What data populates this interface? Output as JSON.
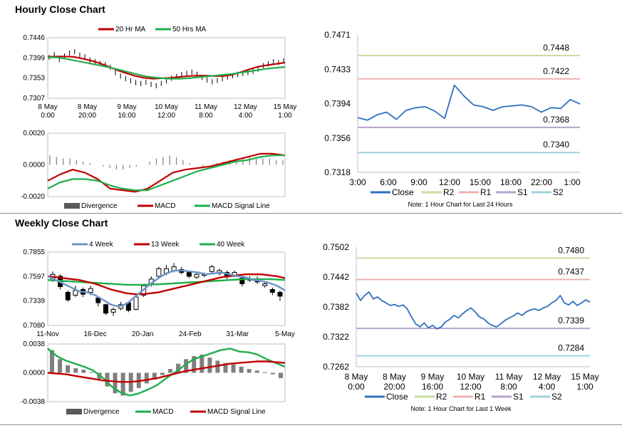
{
  "titles": {
    "hourly": "Hourly Close Chart",
    "weekly": "Weekly Close Chart"
  },
  "colors": {
    "ma_red": "#c00000",
    "ma_green": "#1fae4b",
    "close_blue": "#2f6fbf",
    "four_week": "#6a94c9",
    "r2": "#c8dca0",
    "r1": "#eeb0b0",
    "s1": "#b4a2ce",
    "s2": "#9fd3dc",
    "divergence": "#7f7f7f"
  },
  "chart_data": [
    {
      "type": "line",
      "id": "hourly_ma",
      "title": "",
      "legend": [
        "20 Hr MA",
        "50 Hrs MA"
      ],
      "legend_position": "top",
      "y_ticks": [
        "0.7446",
        "0.7399",
        "0.7353",
        "0.7307"
      ],
      "ylim": [
        0.7307,
        0.7446
      ],
      "x_ticks": [
        "8 May\n0:00",
        "8 May\n20:00",
        "9 May\n16:00",
        "10 May\n12:00",
        "11 May\n8:00",
        "12 May\n4:00",
        "15 May\n1:00"
      ],
      "grid": false,
      "close_style": "hourly OHLC bars",
      "close": [
        0.7401,
        0.7407,
        0.7396,
        0.7404,
        0.7411,
        0.7414,
        0.7406,
        0.7402,
        0.7395,
        0.7391,
        0.7387,
        0.7384,
        0.7378,
        0.7366,
        0.7358,
        0.7352,
        0.7347,
        0.7343,
        0.7341,
        0.7344,
        0.7339,
        0.7336,
        0.7341,
        0.7347,
        0.7353,
        0.7357,
        0.7361,
        0.7364,
        0.7367,
        0.7362,
        0.7355,
        0.7349,
        0.7345,
        0.7348,
        0.7352,
        0.7356,
        0.7359,
        0.7362,
        0.7364,
        0.7366,
        0.7369,
        0.7374,
        0.7382,
        0.7386,
        0.7391,
        0.7389,
        0.7393
      ],
      "series": [
        {
          "name": "20 Hr MA",
          "values": [
            0.7402,
            0.7403,
            0.7403,
            0.7402,
            0.7398,
            0.7393,
            0.7387,
            0.7379,
            0.7371,
            0.7364,
            0.7358,
            0.7354,
            0.7352,
            0.7353,
            0.7354,
            0.7356,
            0.7358,
            0.7359,
            0.7359,
            0.7358,
            0.7358,
            0.7361,
            0.7367,
            0.7374,
            0.738,
            0.7383,
            0.7386,
            0.7389
          ]
        },
        {
          "name": "50 Hrs MA",
          "values": [
            0.7401,
            0.7401,
            0.7398,
            0.7394,
            0.739,
            0.7386,
            0.7382,
            0.7378,
            0.7373,
            0.7368,
            0.7363,
            0.7358,
            0.7355,
            0.7353,
            0.7352,
            0.7352,
            0.7353,
            0.7355,
            0.7357,
            0.7359,
            0.7361,
            0.7363,
            0.7366,
            0.7369,
            0.7372,
            0.7375,
            0.7377,
            0.7379
          ]
        }
      ]
    },
    {
      "type": "line",
      "id": "hourly_macd",
      "legend": [
        "Divergence",
        "MACD",
        "MACD Signal Line"
      ],
      "legend_position": "bottom",
      "y_ticks": [
        "0.0020",
        "0.0000",
        "-0.0020"
      ],
      "ylim": [
        -0.002,
        0.002
      ],
      "divergence": [
        0.0006,
        0.0005,
        0.0004,
        0.0004,
        0.0003,
        0.0002,
        0.0001,
        0.0,
        -0.0001,
        -0.0002,
        -0.0003,
        -0.0003,
        -0.0002,
        -0.0001,
        0.0,
        0.0002,
        0.0004,
        0.0005,
        0.0006,
        0.0005,
        0.0003,
        0.0001,
        0.0,
        -0.0001,
        0.0,
        0.0001,
        0.0002,
        0.0003,
        0.0004,
        0.0005,
        0.0005,
        0.0005,
        0.0004,
        0.0004,
        0.0003,
        0.0003
      ],
      "series": [
        {
          "name": "MACD",
          "values": [
            -0.001,
            -0.0006,
            -0.0003,
            -0.0005,
            -0.0009,
            -0.0015,
            -0.0016,
            -0.0017,
            -0.0015,
            -0.001,
            -0.0005,
            -0.0003,
            -0.0002,
            -0.0001,
            0.0001,
            0.0003,
            0.0005,
            0.0007,
            0.0007,
            0.0006
          ]
        },
        {
          "name": "MACD Signal Line",
          "values": [
            -0.0015,
            -0.0011,
            -0.0009,
            -0.0009,
            -0.001,
            -0.0013,
            -0.0015,
            -0.0016,
            -0.0016,
            -0.0013,
            -0.001,
            -0.0007,
            -0.0004,
            -0.0002,
            0.0,
            0.0002,
            0.0003,
            0.0005,
            0.0006,
            0.0006
          ]
        }
      ]
    },
    {
      "type": "line",
      "id": "hourly_24h",
      "legend": [
        "Close",
        "R2",
        "R1",
        "S1",
        "S2"
      ],
      "legend_position": "bottom",
      "note": "Note: 1 Hour Chart for Last 24 Hours",
      "y_ticks": [
        "0.7471",
        "0.7433",
        "0.7394",
        "0.7356",
        "0.7318"
      ],
      "ylim": [
        0.7318,
        0.7471
      ],
      "x_ticks": [
        "3:00",
        "6:00",
        "9:00",
        "12:00",
        "15:00",
        "18:00",
        "22:00",
        "1:00"
      ],
      "levels": [
        {
          "name": "R2",
          "value": 0.7448,
          "label": "0.7448"
        },
        {
          "name": "R1",
          "value": 0.7422,
          "label": "0.7422"
        },
        {
          "name": "S1",
          "value": 0.7368,
          "label": "0.7368"
        },
        {
          "name": "S2",
          "value": 0.734,
          "label": "0.7340"
        }
      ],
      "close": [
        0.7379,
        0.7376,
        0.7382,
        0.7385,
        0.7377,
        0.7387,
        0.739,
        0.7391,
        0.7386,
        0.7378,
        0.7415,
        0.7403,
        0.7393,
        0.7391,
        0.7387,
        0.7391,
        0.7392,
        0.7393,
        0.7391,
        0.7385,
        0.739,
        0.7389,
        0.7399,
        0.7394
      ]
    },
    {
      "type": "line",
      "id": "weekly_ma",
      "legend": [
        "4 Week",
        "13 Week",
        "40 Week"
      ],
      "legend_position": "top",
      "y_ticks": [
        "0.7855",
        "0.7597",
        "0.7339",
        "0.7080"
      ],
      "ylim": [
        0.708,
        0.7855
      ],
      "x_ticks": [
        "11-Nov",
        "16-Dec",
        "20-Jan",
        "24-Feb",
        "31-Mar",
        "5-May"
      ],
      "close_style": "weekly candlesticks",
      "candles": [
        {
          "o": 0.756,
          "c": 0.762,
          "h": 0.765,
          "l": 0.754
        },
        {
          "o": 0.76,
          "c": 0.749,
          "h": 0.762,
          "l": 0.746
        },
        {
          "o": 0.743,
          "c": 0.735,
          "h": 0.745,
          "l": 0.733
        },
        {
          "o": 0.74,
          "c": 0.745,
          "h": 0.75,
          "l": 0.738
        },
        {
          "o": 0.746,
          "c": 0.741,
          "h": 0.748,
          "l": 0.738
        },
        {
          "o": 0.743,
          "c": 0.747,
          "h": 0.75,
          "l": 0.74
        },
        {
          "o": 0.737,
          "c": 0.732,
          "h": 0.738,
          "l": 0.728
        },
        {
          "o": 0.73,
          "c": 0.721,
          "h": 0.731,
          "l": 0.719
        },
        {
          "o": 0.722,
          "c": 0.725,
          "h": 0.727,
          "l": 0.718
        },
        {
          "o": 0.726,
          "c": 0.73,
          "h": 0.733,
          "l": 0.724
        },
        {
          "o": 0.732,
          "c": 0.724,
          "h": 0.733,
          "l": 0.722
        },
        {
          "o": 0.725,
          "c": 0.738,
          "h": 0.74,
          "l": 0.724
        },
        {
          "o": 0.74,
          "c": 0.75,
          "h": 0.752,
          "l": 0.738
        },
        {
          "o": 0.751,
          "c": 0.757,
          "h": 0.76,
          "l": 0.749
        },
        {
          "o": 0.76,
          "c": 0.768,
          "h": 0.77,
          "l": 0.758
        },
        {
          "o": 0.763,
          "c": 0.768,
          "h": 0.772,
          "l": 0.761
        },
        {
          "o": 0.766,
          "c": 0.77,
          "h": 0.774,
          "l": 0.764
        },
        {
          "o": 0.767,
          "c": 0.764,
          "h": 0.77,
          "l": 0.762
        },
        {
          "o": 0.764,
          "c": 0.76,
          "h": 0.766,
          "l": 0.758
        },
        {
          "o": 0.759,
          "c": 0.762,
          "h": 0.764,
          "l": 0.757
        },
        {
          "o": 0.761,
          "c": 0.762,
          "h": 0.764,
          "l": 0.759
        },
        {
          "o": 0.765,
          "c": 0.77,
          "h": 0.772,
          "l": 0.763
        },
        {
          "o": 0.763,
          "c": 0.766,
          "h": 0.768,
          "l": 0.761
        },
        {
          "o": 0.764,
          "c": 0.76,
          "h": 0.766,
          "l": 0.757
        },
        {
          "o": 0.761,
          "c": 0.764,
          "h": 0.766,
          "l": 0.759
        },
        {
          "o": 0.758,
          "c": 0.752,
          "h": 0.76,
          "l": 0.749
        },
        {
          "o": 0.756,
          "c": 0.757,
          "h": 0.76,
          "l": 0.754
        },
        {
          "o": 0.757,
          "c": 0.754,
          "h": 0.76,
          "l": 0.752
        },
        {
          "o": 0.75,
          "c": 0.752,
          "h": 0.754,
          "l": 0.748
        },
        {
          "o": 0.746,
          "c": 0.743,
          "h": 0.748,
          "l": 0.74
        },
        {
          "o": 0.743,
          "c": 0.739,
          "h": 0.745,
          "l": 0.734
        }
      ],
      "series": [
        {
          "name": "4 Week",
          "values": [
            0.76,
            0.756,
            0.752,
            0.748,
            0.744,
            0.743,
            0.74,
            0.735,
            0.73,
            0.728,
            0.731,
            0.738,
            0.745,
            0.752,
            0.758,
            0.763,
            0.766,
            0.766,
            0.765,
            0.764,
            0.762,
            0.763,
            0.764,
            0.762,
            0.76,
            0.759,
            0.756,
            0.755,
            0.753,
            0.75,
            0.745
          ]
        },
        {
          "name": "13 Week",
          "values": [
            0.76,
            0.759,
            0.758,
            0.757,
            0.756,
            0.754,
            0.752,
            0.749,
            0.746,
            0.744,
            0.742,
            0.741,
            0.741,
            0.742,
            0.743,
            0.745,
            0.747,
            0.749,
            0.751,
            0.753,
            0.755,
            0.757,
            0.759,
            0.76,
            0.761,
            0.762,
            0.762,
            0.762,
            0.761,
            0.76,
            0.758
          ]
        },
        {
          "name": "40 Week",
          "values": [
            0.756,
            0.7555,
            0.755,
            0.7545,
            0.754,
            0.7535,
            0.753,
            0.7525,
            0.752,
            0.7515,
            0.751,
            0.751,
            0.751,
            0.7512,
            0.7515,
            0.752,
            0.7525,
            0.753,
            0.7535,
            0.754,
            0.7545,
            0.755,
            0.7555,
            0.756,
            0.7565,
            0.757,
            0.757,
            0.757,
            0.7568,
            0.7565,
            0.756
          ]
        }
      ]
    },
    {
      "type": "bar",
      "id": "weekly_macd",
      "legend": [
        "Divergence",
        "MACD",
        "MACD Signal Line"
      ],
      "legend_position": "bottom",
      "y_ticks": [
        "0.0038",
        "0.0000",
        "-0.0038"
      ],
      "ylim": [
        -0.0038,
        0.0038
      ],
      "divergence": [
        0.003,
        0.0018,
        0.001,
        0.0006,
        0.0004,
        0.0001,
        -0.0008,
        -0.0018,
        -0.0027,
        -0.003,
        -0.0025,
        -0.002,
        -0.0014,
        -0.0009,
        -0.0003,
        0.0005,
        0.0012,
        0.0018,
        0.0022,
        0.0024,
        0.002,
        0.0016,
        0.0013,
        0.0011,
        0.0008,
        0.0005,
        0.0003,
        0.0001,
        -0.0002,
        -0.0007
      ],
      "series": [
        {
          "name": "MACD",
          "values": [
            0.0032,
            0.0022,
            0.0016,
            0.0012,
            0.0008,
            0.0003,
            -0.0006,
            -0.0018,
            -0.0026,
            -0.003,
            -0.0027,
            -0.0022,
            -0.0016,
            -0.0007,
            0.0001,
            0.001,
            0.0018,
            0.0022,
            0.0026,
            0.003,
            0.0032,
            0.0028,
            0.0027,
            0.0024,
            0.0018,
            0.0013,
            0.0008
          ]
        },
        {
          "name": "MACD Signal Line",
          "values": [
            0.0,
            -0.0001,
            -0.0002,
            -0.0004,
            -0.0006,
            -0.0008,
            -0.001,
            -0.0011,
            -0.0012,
            -0.0012,
            -0.0011,
            -0.0009,
            -0.0007,
            -0.0004,
            -0.0001,
            0.0002,
            0.0004,
            0.0006,
            0.0008,
            0.001,
            0.0012,
            0.0013,
            0.0014,
            0.0015,
            0.0015,
            0.0014,
            0.0013
          ]
        }
      ]
    },
    {
      "type": "line",
      "id": "hourly_week",
      "legend": [
        "Close",
        "R2",
        "R1",
        "S1",
        "S2"
      ],
      "legend_position": "bottom",
      "note": "Note: 1 Hour Chart for Last 1 Week",
      "y_ticks": [
        "0.7502",
        "0.7442",
        "0.7382",
        "0.7322",
        "0.7262"
      ],
      "ylim": [
        0.7262,
        0.7502
      ],
      "x_ticks": [
        "8 May\n0:00",
        "8 May\n20:00",
        "9 May\n16:00",
        "10 May\n12:00",
        "11 May\n8:00",
        "12 May\n4:00",
        "15 May\n1:00"
      ],
      "levels": [
        {
          "name": "R2",
          "value": 0.748,
          "label": "0.7480"
        },
        {
          "name": "R1",
          "value": 0.7437,
          "label": "0.7437"
        },
        {
          "name": "S1",
          "value": 0.7339,
          "label": "0.7339"
        },
        {
          "name": "S2",
          "value": 0.7284,
          "label": "0.7284"
        }
      ],
      "close": [
        0.741,
        0.7395,
        0.7405,
        0.7412,
        0.7398,
        0.7402,
        0.7395,
        0.739,
        0.7385,
        0.7387,
        0.7383,
        0.7386,
        0.7378,
        0.7362,
        0.7348,
        0.7342,
        0.735,
        0.734,
        0.7345,
        0.7338,
        0.7342,
        0.7352,
        0.7357,
        0.7365,
        0.736,
        0.7368,
        0.7375,
        0.738,
        0.7372,
        0.7362,
        0.7358,
        0.735,
        0.7345,
        0.7342,
        0.7348,
        0.7355,
        0.736,
        0.7364,
        0.737,
        0.7365,
        0.7372,
        0.7376,
        0.7378,
        0.7375,
        0.738,
        0.7383,
        0.739,
        0.7395,
        0.7405,
        0.739,
        0.7386,
        0.7393,
        0.7385,
        0.739,
        0.7396,
        0.7392
      ]
    }
  ]
}
